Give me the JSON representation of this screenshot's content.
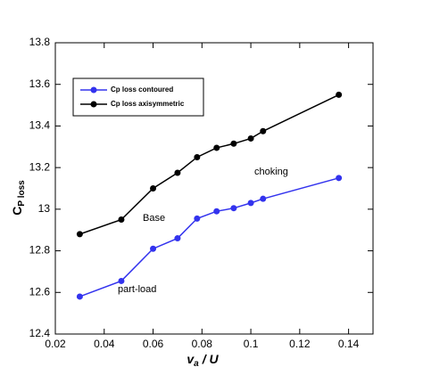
{
  "chart_data": {
    "type": "line",
    "x": [
      0.03,
      0.047,
      0.06,
      0.07,
      0.078,
      0.086,
      0.093,
      0.1,
      0.105,
      0.136
    ],
    "series": [
      {
        "name": "Cp loss contoured",
        "color": "#3333ee",
        "values": [
          12.58,
          12.655,
          12.81,
          12.86,
          12.955,
          12.99,
          13.005,
          13.03,
          13.05,
          13.15
        ]
      },
      {
        "name": "Cp loss axisymmetric",
        "color": "#000000",
        "values": [
          12.88,
          12.95,
          13.1,
          13.175,
          13.25,
          13.295,
          13.315,
          13.34,
          13.375,
          13.55
        ]
      }
    ],
    "xlim": [
      0.02,
      0.15
    ],
    "xticks": [
      0.02,
      0.04,
      0.06,
      0.08,
      0.1,
      0.12,
      0.14
    ],
    "ylim": [
      12.4,
      13.8
    ],
    "yticks": [
      12.4,
      12.6,
      12.8,
      13,
      13.2,
      13.4,
      13.6,
      13.8
    ],
    "x_label": [
      "v",
      "a",
      "/ U"
    ],
    "y_label": [
      "C",
      "P loss"
    ],
    "annotations": [
      "choking",
      "Base",
      "part-load"
    ],
    "legend": "upper left"
  }
}
